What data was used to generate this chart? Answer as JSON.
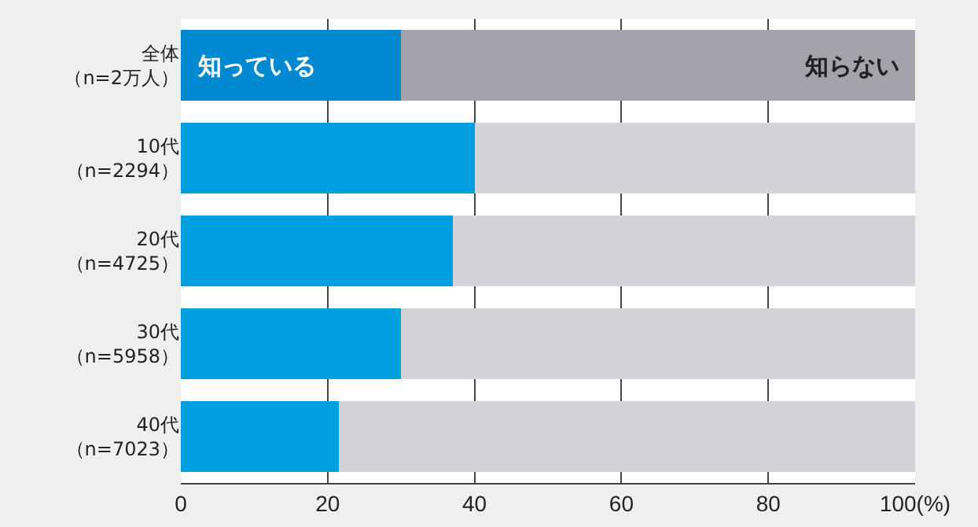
{
  "chart_data": {
    "type": "bar",
    "orientation": "horizontal",
    "stacked": true,
    "categories": [
      "全体（n=2万人）",
      "10代（n=2294）",
      "20代（n=4725）",
      "30代（n=5958）",
      "40代（n=7023）"
    ],
    "series": [
      {
        "name": "知っている",
        "colors": [
          "#0088d0",
          "#00a0e0",
          "#00a0e0",
          "#00a0e0",
          "#00a0e0"
        ],
        "values": [
          30,
          40,
          37,
          30,
          21.5
        ]
      },
      {
        "name": "知らない",
        "colors": [
          "#a3a3ab",
          "#d3d3d8",
          "#d3d3d8",
          "#d3d3d8",
          "#d3d3d8"
        ],
        "values": [
          70,
          60,
          63,
          70,
          78.5
        ]
      }
    ],
    "xlim": [
      0,
      100
    ],
    "xticks": [
      0,
      20,
      40,
      60,
      80,
      {
        "value": 100,
        "label": "100(%)"
      }
    ],
    "grid": "x",
    "legend": false
  }
}
